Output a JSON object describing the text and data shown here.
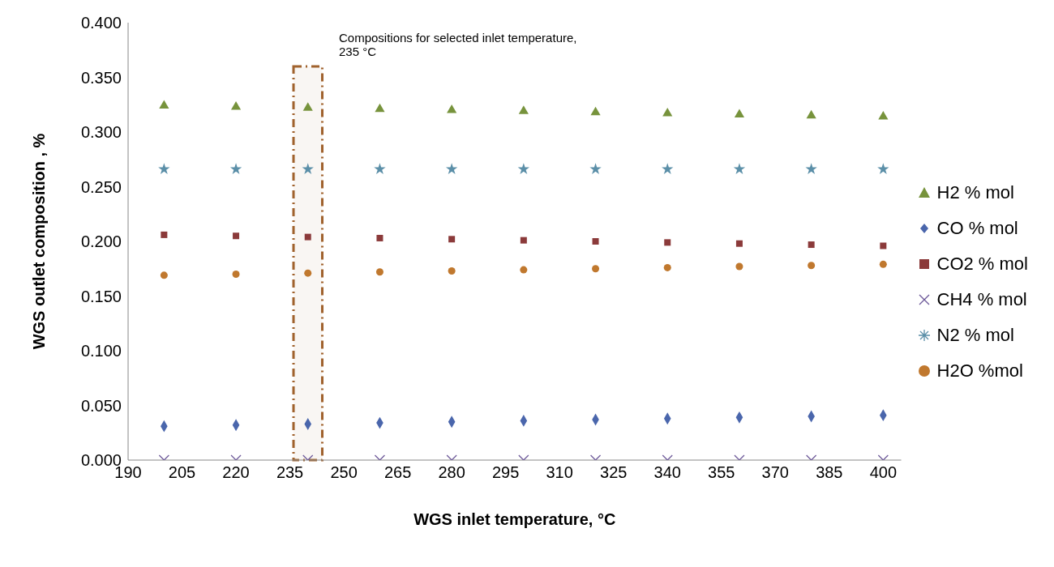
{
  "chart_data": {
    "type": "scatter",
    "xlabel": "WGS inlet temperature, °C",
    "ylabel": "WGS outlet composition , %",
    "x": [
      200,
      220,
      240,
      260,
      280,
      300,
      320,
      340,
      360,
      380,
      400
    ],
    "series": [
      {
        "name": "H2 % mol",
        "color": "#77933c",
        "marker": "triangle",
        "values": [
          0.324,
          0.323,
          0.322,
          0.321,
          0.32,
          0.319,
          0.318,
          0.317,
          0.316,
          0.315,
          0.314
        ]
      },
      {
        "name": "CO % mol",
        "color": "#4a66ac",
        "marker": "diamond",
        "values": [
          0.031,
          0.032,
          0.033,
          0.034,
          0.035,
          0.036,
          0.037,
          0.038,
          0.039,
          0.04,
          0.041
        ]
      },
      {
        "name": "CO2 % mol",
        "color": "#8b3a3a",
        "marker": "square",
        "values": [
          0.206,
          0.205,
          0.204,
          0.203,
          0.202,
          0.201,
          0.2,
          0.199,
          0.198,
          0.197,
          0.196
        ]
      },
      {
        "name": "CH4 % mol",
        "color": "#6e5a9a",
        "marker": "cross",
        "values": [
          0,
          0,
          0,
          0,
          0,
          0,
          0,
          0,
          0,
          0,
          0
        ]
      },
      {
        "name": "N2 % mol",
        "color": "#5b8fa8",
        "marker": "star",
        "values": [
          0.266,
          0.266,
          0.266,
          0.266,
          0.266,
          0.266,
          0.266,
          0.266,
          0.266,
          0.266,
          0.266
        ]
      },
      {
        "name": "H2O %mol",
        "color": "#c0782e",
        "marker": "circle",
        "values": [
          0.169,
          0.17,
          0.171,
          0.172,
          0.173,
          0.174,
          0.175,
          0.176,
          0.177,
          0.178,
          0.179
        ]
      }
    ],
    "xlim": [
      190,
      405
    ],
    "xticks": [
      190,
      205,
      220,
      235,
      250,
      265,
      280,
      295,
      310,
      325,
      340,
      355,
      370,
      385,
      400
    ],
    "ylim": [
      0,
      0.4
    ],
    "yticks": [
      {
        "value": 0,
        "label": "0.000"
      },
      {
        "value": 0.05,
        "label": "0.050"
      },
      {
        "value": 0.1,
        "label": "0.100"
      },
      {
        "value": 0.15,
        "label": "0.150"
      },
      {
        "value": 0.2,
        "label": "0.200"
      },
      {
        "value": 0.25,
        "label": "0.250"
      },
      {
        "value": 0.3,
        "label": "0.300"
      },
      {
        "value": 0.35,
        "label": "0.350"
      },
      {
        "value": 0.4,
        "label": "0.400"
      }
    ],
    "bands": [
      {
        "axis": "x",
        "from": 236,
        "to": 244,
        "color": "#a0622d",
        "label": "Compositions for selected inlet temperature, 235 °C"
      }
    ],
    "grid": false,
    "legend": "right"
  }
}
